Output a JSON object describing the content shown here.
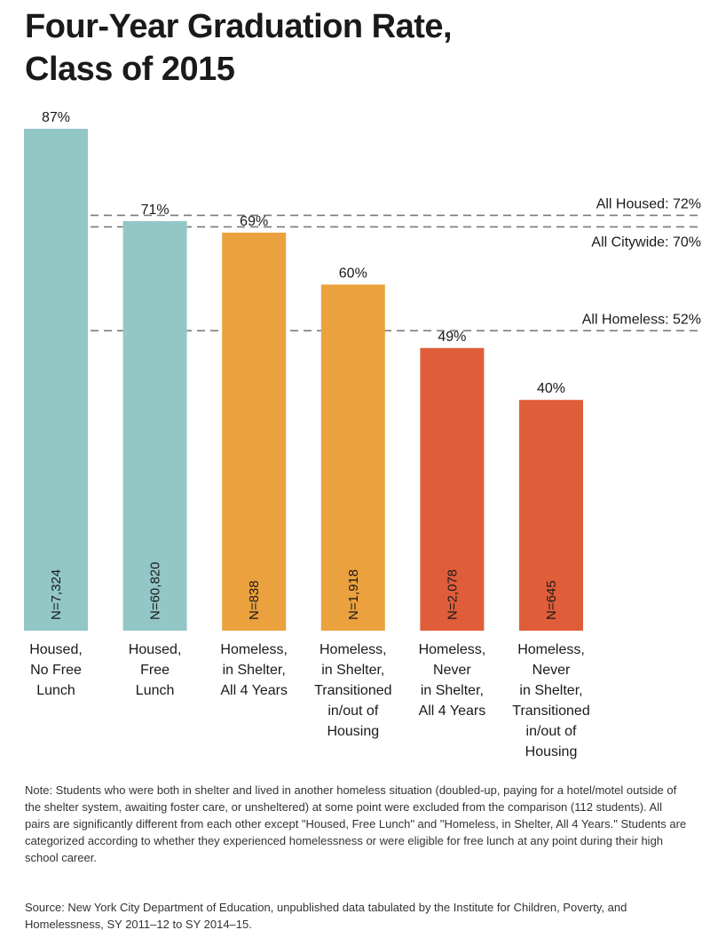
{
  "title_lines": [
    "Four-Year Graduation Rate,",
    "Class of 2015"
  ],
  "chart_data": {
    "type": "bar",
    "ylim": [
      0,
      100
    ],
    "grid": false,
    "categories": [
      [
        "Housed,",
        "No Free",
        "Lunch"
      ],
      [
        "Housed,",
        "Free",
        "Lunch"
      ],
      [
        "Homeless,",
        "in Shelter,",
        "All 4 Years"
      ],
      [
        "Homeless,",
        "in Shelter,",
        "Transitioned",
        "in/out of",
        "Housing"
      ],
      [
        "Homeless,",
        "Never",
        "in Shelter,",
        "All 4 Years"
      ],
      [
        "Homeless,",
        "Never",
        "in Shelter,",
        "Transitioned",
        "in/out of",
        "Housing"
      ]
    ],
    "values": [
      87,
      71,
      69,
      60,
      49,
      40
    ],
    "value_labels": [
      "87%",
      "71%",
      "69%",
      "60%",
      "49%",
      "40%"
    ],
    "n_labels": [
      "N=7,324",
      "N=60,820",
      "N=838",
      "N=1,918",
      "N=2,078",
      "N=645"
    ],
    "bar_colors": [
      "#92c7c6",
      "#92c7c6",
      "#eba13d",
      "#eba13d",
      "#e05d3a",
      "#e05d3a"
    ],
    "reference_lines": [
      {
        "label": "All Housed: 72%",
        "value": 72
      },
      {
        "label": "All Citywide: 70%",
        "value": 70
      },
      {
        "label": "All Homeless: 52%",
        "value": 52
      }
    ]
  },
  "note": "Note: Students who were both in shelter and lived in another homeless situation (doubled-up, paying for a hotel/motel outside of the shelter system, awaiting foster care, or unsheltered) at some point were excluded from the comparison (112 students). All pairs are significantly different from each other except \"Housed, Free Lunch\" and \"Homeless, in Shelter, All 4 Years.\" Students are categorized according to whether they experienced homelessness or were eligible for free lunch at any point during their high school career.",
  "source": "Source: New York City Department of Education, unpublished data tabulated by the Institute for Children, Poverty, and Homelessness, SY 2011–12 to SY 2014–15."
}
